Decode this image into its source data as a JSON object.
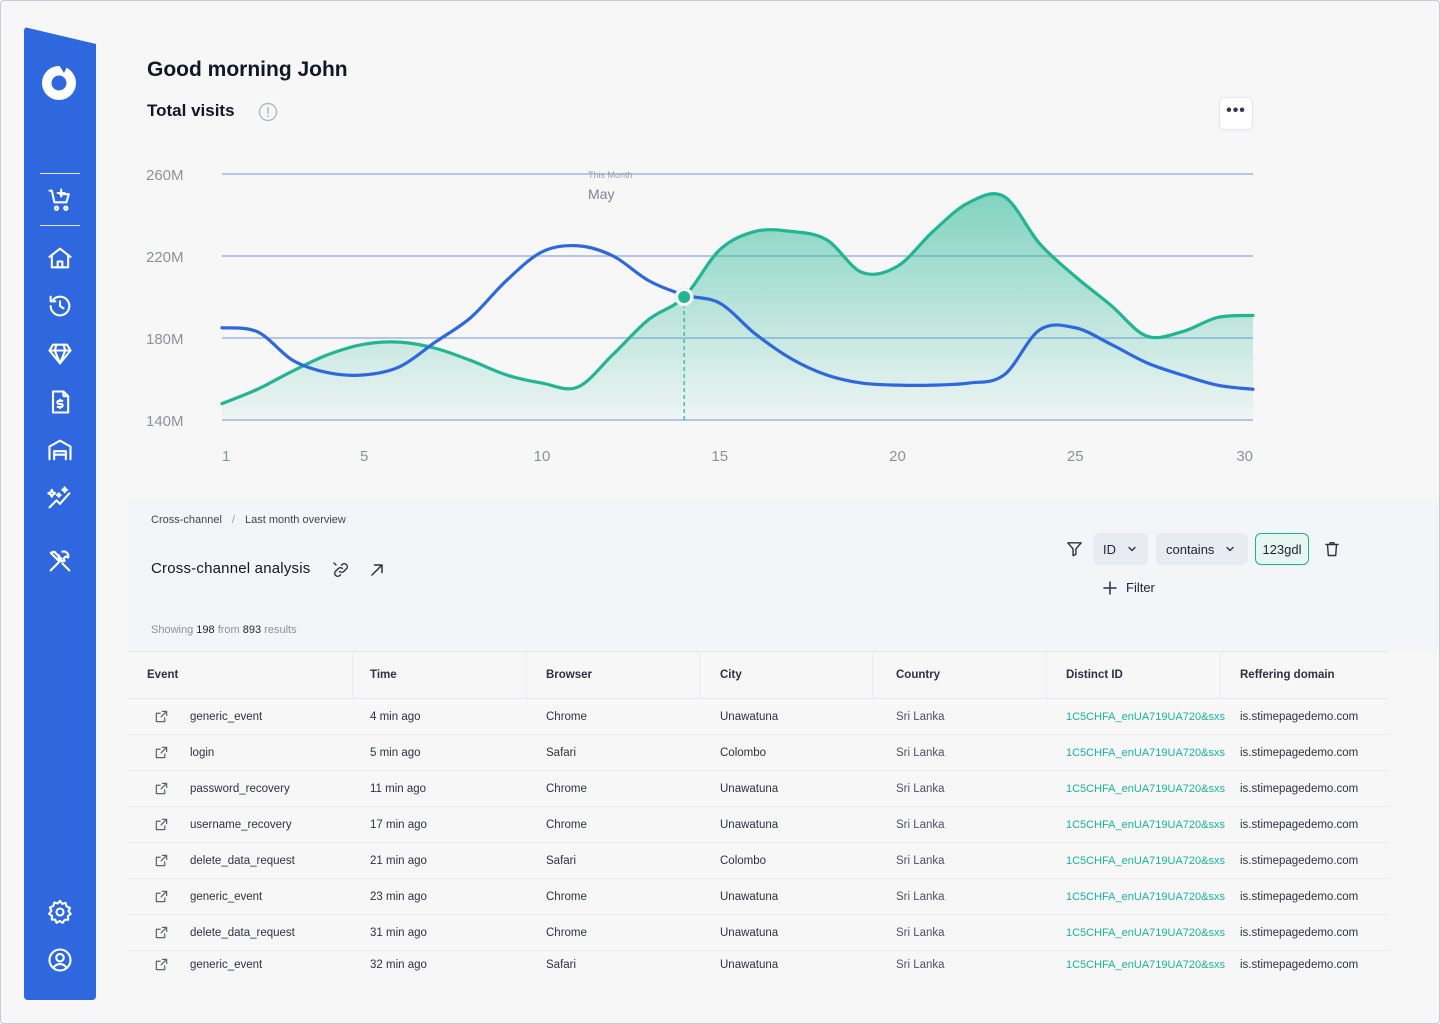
{
  "header": {
    "greeting": "Good morning John",
    "chart_title": "Total visits",
    "more_label": "•••"
  },
  "sidebar": {
    "items": [
      {
        "icon": "cart-add-icon"
      },
      {
        "icon": "home-icon"
      },
      {
        "icon": "history-icon"
      },
      {
        "icon": "diamond-icon"
      },
      {
        "icon": "invoice-icon"
      },
      {
        "icon": "warehouse-icon"
      },
      {
        "icon": "sparkle-trend-icon"
      },
      {
        "icon": "tools-icon"
      },
      {
        "icon": "gear-icon"
      },
      {
        "icon": "user-icon"
      }
    ]
  },
  "chart_data": {
    "type": "line",
    "title": "Total visits",
    "x": [
      1,
      2,
      3,
      4,
      5,
      6,
      7,
      8,
      9,
      10,
      11,
      12,
      13,
      14,
      15,
      16,
      17,
      18,
      19,
      20,
      21,
      22,
      23,
      24,
      25,
      26,
      27,
      28,
      29,
      30
    ],
    "x_ticks": [
      "1",
      "5",
      "10",
      "15",
      "20",
      "25",
      "30"
    ],
    "x_tick_values": [
      1,
      5,
      10,
      15,
      20,
      25,
      30
    ],
    "y_ticks": [
      "260M",
      "220M",
      "180M",
      "140M"
    ],
    "y_tick_values": [
      260,
      220,
      180,
      140
    ],
    "ylim": [
      140,
      260
    ],
    "xlim": [
      1,
      30
    ],
    "series": [
      {
        "color": "#22b592",
        "fill": true,
        "values": [
          148,
          155,
          164,
          172,
          177,
          178,
          175,
          169,
          162,
          158,
          156,
          172,
          189,
          200,
          223,
          232,
          232,
          228,
          212,
          215,
          232,
          246,
          249,
          226,
          210,
          196,
          181,
          183,
          190,
          191
        ]
      },
      {
        "color": "#2f68de",
        "values": [
          185,
          183,
          169,
          163,
          162,
          166,
          178,
          190,
          208,
          222,
          225,
          220,
          208,
          201,
          197,
          182,
          170,
          162,
          158,
          157,
          157,
          158,
          162,
          184,
          185,
          177,
          168,
          162,
          157,
          155
        ]
      }
    ],
    "tooltip": {
      "month_caption": "This Month",
      "month": "May",
      "x": 14
    },
    "grid": true
  },
  "section": {
    "breadcrumb": [
      "Cross-channel",
      "Last month overview"
    ],
    "title": "Cross-channel analysis"
  },
  "filters": {
    "field": "ID",
    "operator": "contains",
    "value": "123gdl",
    "add_label": "Filter"
  },
  "results": {
    "prefix": "Showing",
    "shown": "198",
    "middle": "from",
    "total": "893",
    "suffix": "results"
  },
  "table": {
    "columns": [
      "Event",
      "Time",
      "Browser",
      "City",
      "Country",
      "Distinct ID",
      "Reffering domain"
    ],
    "rows": [
      [
        "generic_event",
        "4 min ago",
        "Chrome",
        "Unawatuna",
        "Sri Lanka",
        "1C5CHFA_enUA719UA720&sxs",
        "is.stimepagedemo.com"
      ],
      [
        "login",
        "5 min ago",
        "Safari",
        "Colombo",
        "Sri Lanka",
        "1C5CHFA_enUA719UA720&sxs",
        "is.stimepagedemo.com"
      ],
      [
        "password_recovery",
        "11 min ago",
        "Chrome",
        "Unawatuna",
        "Sri Lanka",
        "1C5CHFA_enUA719UA720&sxs",
        "is.stimepagedemo.com"
      ],
      [
        "username_recovery",
        "17 min ago",
        "Chrome",
        "Unawatuna",
        "Sri Lanka",
        "1C5CHFA_enUA719UA720&sxs",
        "is.stimepagedemo.com"
      ],
      [
        "delete_data_request",
        "21 min ago",
        "Safari",
        "Colombo",
        "Sri Lanka",
        "1C5CHFA_enUA719UA720&sxs",
        "is.stimepagedemo.com"
      ],
      [
        "generic_event",
        "23 min ago",
        "Chrome",
        "Unawatuna",
        "Sri Lanka",
        "1C5CHFA_enUA719UA720&sxs",
        "is.stimepagedemo.com"
      ],
      [
        "delete_data_request",
        "31 min ago",
        "Chrome",
        "Unawatuna",
        "Sri Lanka",
        "1C5CHFA_enUA719UA720&sxs",
        "is.stimepagedemo.com"
      ],
      [
        "generic_event",
        "32 min ago",
        "Safari",
        "Unawatuna",
        "Sri Lanka",
        "1C5CHFA_enUA719UA720&sxs",
        "is.stimepagedemo.com"
      ]
    ]
  }
}
